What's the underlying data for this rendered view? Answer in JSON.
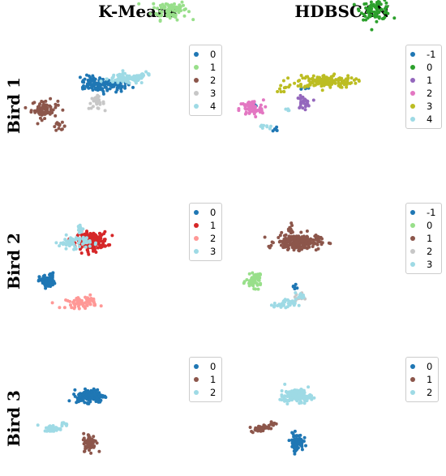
{
  "chart_data": [
    {
      "type": "scatter",
      "row_label": "Bird 1",
      "col_label": "K-Means",
      "legend": [
        "0",
        "1",
        "2",
        "3",
        "4"
      ],
      "colors": [
        "#1f77b4",
        "#98df8a",
        "#8c564b",
        "#c7c7c7",
        "#9edae5"
      ],
      "clusters": [
        {
          "label": "0",
          "blobs": [
            [
              40,
              25,
              22,
              5,
              90
            ],
            [
              14,
              29,
              10,
              6,
              30
            ],
            [
              4,
              32,
              6,
              6,
              8
            ]
          ]
        },
        {
          "label": "1",
          "blobs": [
            [
              153,
              147,
              16,
              8,
              80
            ],
            [
              172,
              150,
              6,
              5,
              8
            ]
          ]
        },
        {
          "label": "2",
          "blobs": [
            [
              -75,
              -12,
              12,
              7,
              70
            ],
            [
              -48,
              -40,
              6,
              3,
              14
            ]
          ]
        },
        {
          "label": "3",
          "blobs": [
            [
              20,
              -2,
              7,
              5,
              30
            ]
          ]
        },
        {
          "label": "4",
          "blobs": [
            [
              76,
              36,
              18,
              4,
              100
            ],
            [
              108,
              40,
              8,
              3,
              10
            ]
          ]
        }
      ]
    },
    {
      "type": "scatter",
      "row_label": "Bird 1",
      "col_label": "HDBSCAN",
      "legend": [
        "-1",
        "0",
        "1",
        "2",
        "3",
        "4"
      ],
      "colors": [
        "#1f77b4",
        "#2ca02c",
        "#9467bd",
        "#e377c2",
        "#bcbd22",
        "#9edae5"
      ],
      "clusters": [
        {
          "label": "-1",
          "blobs": [
            [
              -68,
              -4,
              2,
              3,
              5
            ],
            [
              -30,
              -45,
              6,
              3,
              6
            ],
            [
              20,
              20,
              4,
              2,
              4
            ]
          ]
        },
        {
          "label": "0",
          "blobs": [
            [
              153,
              147,
              14,
              8,
              80
            ]
          ]
        },
        {
          "label": "1",
          "blobs": [
            [
              20,
              -2,
              6,
              5,
              30
            ]
          ]
        },
        {
          "label": "2",
          "blobs": [
            [
              -75,
              -12,
              11,
              7,
              70
            ]
          ]
        },
        {
          "label": "3",
          "blobs": [
            [
              60,
              32,
              26,
              5,
              160
            ],
            [
              -20,
              20,
              6,
              3,
              10
            ]
          ]
        },
        {
          "label": "4",
          "blobs": [
            [
              -48,
              -40,
              5,
              3,
              10
            ],
            [
              -10,
              -15,
              3,
              2,
              4
            ]
          ]
        }
      ]
    },
    {
      "type": "scatter",
      "row_label": "Bird 2",
      "col_label": "K-Means",
      "legend": [
        "0",
        "1",
        "2",
        "3"
      ],
      "colors": [
        "#1f77b4",
        "#d62728",
        "#ff9896",
        "#9edae5"
      ],
      "clusters": [
        {
          "label": "0",
          "blobs": [
            [
              -70,
              -35,
              7,
              5,
              60
            ],
            [
              -62,
              -25,
              3,
              2,
              8
            ]
          ]
        },
        {
          "label": "1",
          "blobs": [
            [
              12,
              30,
              14,
              7,
              180
            ]
          ]
        },
        {
          "label": "2",
          "blobs": [
            [
              -8,
              -70,
              14,
              4,
              55
            ],
            [
              10,
              -64,
              6,
              3,
              15
            ]
          ]
        },
        {
          "label": "3",
          "blobs": [
            [
              -20,
              28,
              14,
              5,
              70
            ],
            [
              -10,
              48,
              3,
              5,
              14
            ]
          ]
        }
      ]
    },
    {
      "type": "scatter",
      "row_label": "Bird 2",
      "col_label": "HDBSCAN",
      "legend": [
        "-1",
        "0",
        "1",
        "2",
        "3"
      ],
      "colors": [
        "#1f77b4",
        "#98df8a",
        "#8c564b",
        "#c7c7c7",
        "#9edae5"
      ],
      "clusters": [
        {
          "label": "-1",
          "blobs": [
            [
              4,
              -45,
              2,
              2,
              6
            ]
          ]
        },
        {
          "label": "0",
          "blobs": [
            [
              -70,
              -35,
              7,
              5,
              55
            ],
            [
              -62,
              -25,
              3,
              2,
              6
            ]
          ]
        },
        {
          "label": "1",
          "blobs": [
            [
              10,
              28,
              20,
              6,
              220
            ],
            [
              -4,
              48,
              3,
              5,
              12
            ]
          ]
        },
        {
          "label": "2",
          "blobs": [
            [
              12,
              -60,
              4,
              3,
              12
            ]
          ]
        },
        {
          "label": "3",
          "blobs": [
            [
              -14,
              -72,
              10,
              4,
              40
            ],
            [
              16,
              -58,
              4,
              3,
              8
            ]
          ]
        }
      ]
    },
    {
      "type": "scatter",
      "row_label": "Bird 3",
      "col_label": "K-Means",
      "legend": [
        "0",
        "1",
        "2"
      ],
      "colors": [
        "#1f77b4",
        "#8c564b",
        "#9edae5"
      ],
      "clusters": [
        {
          "label": "0",
          "blobs": [
            [
              10,
              25,
              12,
              6,
              140
            ],
            [
              -10,
              18,
              6,
              3,
              10
            ]
          ]
        },
        {
          "label": "1",
          "blobs": [
            [
              8,
              -60,
              6,
              8,
              60
            ],
            [
              6,
              -72,
              4,
              3,
              10
            ]
          ]
        },
        {
          "label": "2",
          "blobs": [
            [
              -60,
              -35,
              8,
              3,
              40
            ],
            [
              -38,
              -26,
              5,
              2,
              10
            ]
          ]
        }
      ]
    },
    {
      "type": "scatter",
      "row_label": "Bird 3",
      "col_label": "HDBSCAN",
      "legend": [
        "0",
        "1",
        "2"
      ],
      "colors": [
        "#1f77b4",
        "#8c564b",
        "#9edae5"
      ],
      "clusters": [
        {
          "label": "0",
          "blobs": [
            [
              8,
              -60,
              6,
              8,
              70
            ],
            [
              6,
              -72,
              4,
              3,
              10
            ]
          ]
        },
        {
          "label": "1",
          "blobs": [
            [
              -60,
              -35,
              8,
              3,
              40
            ],
            [
              -38,
              -26,
              5,
              2,
              10
            ]
          ]
        },
        {
          "label": "2",
          "blobs": [
            [
              10,
              25,
              12,
              6,
              140
            ],
            [
              -10,
              18,
              6,
              3,
              10
            ]
          ]
        }
      ]
    }
  ],
  "column_titles": [
    "K-Means",
    "HDBSCAN"
  ],
  "row_titles": [
    "Bird 1",
    "Bird 2",
    "Bird 3"
  ]
}
